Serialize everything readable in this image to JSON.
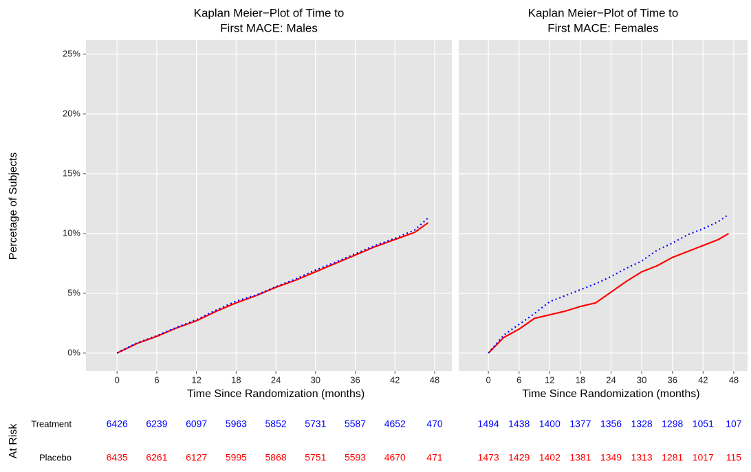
{
  "chart_data": [
    {
      "type": "line",
      "title": [
        "Kaplan Meier−Plot of Time to",
        "First MACE: Males"
      ],
      "xlabel": "Time Since Randomization (months)",
      "ylabel": "Percetage of Subjects",
      "xlim": [
        -4.7,
        50.6
      ],
      "xticks": [
        0,
        6,
        12,
        18,
        24,
        30,
        36,
        42,
        48
      ],
      "ylim": [
        -1.5,
        26.2
      ],
      "yticks": [
        {
          "value": 0,
          "label": "0%"
        },
        {
          "value": 5,
          "label": "5%"
        },
        {
          "value": 10,
          "label": "10%"
        },
        {
          "value": 15,
          "label": "15%"
        },
        {
          "value": 20,
          "label": "20%"
        },
        {
          "value": 25,
          "label": "25%"
        }
      ],
      "grid": true,
      "x": [
        0,
        3,
        6,
        9,
        12,
        15,
        18,
        21,
        24,
        27,
        30,
        33,
        36,
        39,
        42,
        45,
        47
      ],
      "series": [
        {
          "color": "#ff0000",
          "linestyle": "solid",
          "values": [
            0,
            0.8,
            1.4,
            2.1,
            2.7,
            3.5,
            4.2,
            4.8,
            5.5,
            6.1,
            6.8,
            7.5,
            8.2,
            8.9,
            9.5,
            10.1,
            10.9
          ]
        },
        {
          "color": "#0000ff",
          "linestyle": "dotted",
          "values": [
            0,
            0.85,
            1.45,
            2.15,
            2.8,
            3.6,
            4.35,
            4.85,
            5.55,
            6.2,
            6.95,
            7.6,
            8.3,
            9.0,
            9.6,
            10.3,
            11.3
          ]
        }
      ],
      "at_risk": [
        [
          6426,
          6239,
          6097,
          5963,
          5852,
          5731,
          5587,
          4652,
          470
        ],
        [
          6435,
          6261,
          6127,
          5995,
          5868,
          5751,
          5593,
          4670,
          471
        ]
      ]
    },
    {
      "type": "line",
      "title": [
        "Kaplan Meier−Plot of Time to",
        "First MACE: Females"
      ],
      "xlabel": "Time Since Randomization (months)",
      "xlim": [
        -5.8,
        50.7
      ],
      "xticks": [
        0,
        6,
        12,
        18,
        24,
        30,
        36,
        42,
        48
      ],
      "ylim": [
        -1.5,
        26.2
      ],
      "grid": true,
      "x": [
        0,
        3,
        6,
        9,
        12,
        15,
        18,
        21,
        24,
        27,
        30,
        33,
        36,
        39,
        42,
        45,
        47
      ],
      "series": [
        {
          "color": "#ff0000",
          "linestyle": "solid",
          "values": [
            0,
            1.3,
            2.0,
            2.9,
            3.2,
            3.5,
            3.9,
            4.2,
            5.1,
            6.0,
            6.8,
            7.3,
            8.0,
            8.5,
            9.0,
            9.5,
            10.0
          ]
        },
        {
          "color": "#0000ff",
          "linestyle": "dotted",
          "values": [
            0,
            1.5,
            2.4,
            3.3,
            4.3,
            4.8,
            5.3,
            5.8,
            6.4,
            7.1,
            7.7,
            8.6,
            9.2,
            9.9,
            10.4,
            11.0,
            11.6
          ]
        }
      ],
      "at_risk": [
        [
          1494,
          1438,
          1400,
          1377,
          1356,
          1328,
          1298,
          1051,
          107
        ],
        [
          1473,
          1429,
          1402,
          1381,
          1349,
          1313,
          1281,
          1017,
          115
        ]
      ]
    }
  ],
  "at_risk": {
    "label": "At Risk",
    "rows": [
      "Treatment",
      "Placebo"
    ],
    "colors": [
      "#0000ff",
      "#ff0000"
    ]
  }
}
